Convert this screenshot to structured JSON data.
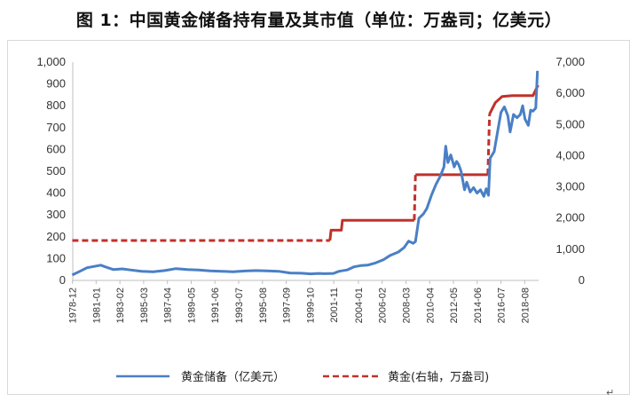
{
  "chart_data": {
    "type": "line",
    "title": "图 1：中国黄金储备持有量及其市值（单位：万盎司；亿美元）",
    "x_categories": [
      "1978-12",
      "1981-01",
      "1983-02",
      "1985-03",
      "1987-04",
      "1989-05",
      "1991-06",
      "1993-07",
      "1995-08",
      "1997-09",
      "1999-10",
      "2001-11",
      "2004-01",
      "2006-02",
      "2008-03",
      "2010-04",
      "2012-05",
      "2014-06",
      "2016-07",
      "2018-08"
    ],
    "x_start_year": 1978.95,
    "x_end_year": 2019.8,
    "y_left": {
      "min": 0,
      "max": 1000,
      "step": 100,
      "ticks": [
        "0",
        "100",
        "200",
        "300",
        "400",
        "500",
        "600",
        "700",
        "800",
        "900",
        "1,000"
      ]
    },
    "y_right": {
      "min": 0,
      "max": 7000,
      "step": 1000,
      "ticks": [
        "0",
        "1,000",
        "2,000",
        "3,000",
        "4,000",
        "5,000",
        "6,000",
        "7,000"
      ]
    },
    "series": [
      {
        "name": "黄金储备（亿美元）",
        "axis": "left",
        "style": "solid",
        "color": "#4a7fc6",
        "points": [
          [
            1978.9,
            25
          ],
          [
            1979.5,
            40
          ],
          [
            1980.2,
            58
          ],
          [
            1981.0,
            66
          ],
          [
            1981.4,
            70
          ],
          [
            1981.8,
            62
          ],
          [
            1982.5,
            50
          ],
          [
            1983.3,
            53
          ],
          [
            1984.0,
            48
          ],
          [
            1985.0,
            42
          ],
          [
            1986.0,
            40
          ],
          [
            1987.0,
            45
          ],
          [
            1988.0,
            54
          ],
          [
            1989.0,
            50
          ],
          [
            1990.0,
            48
          ],
          [
            1991.0,
            44
          ],
          [
            1992.0,
            42
          ],
          [
            1993.0,
            40
          ],
          [
            1994.0,
            43
          ],
          [
            1995.0,
            45
          ],
          [
            1996.0,
            44
          ],
          [
            1997.0,
            42
          ],
          [
            1998.0,
            34
          ],
          [
            1999.0,
            33
          ],
          [
            1999.8,
            30
          ],
          [
            2000.5,
            32
          ],
          [
            2001.0,
            31
          ],
          [
            2001.8,
            32
          ],
          [
            2002.3,
            42
          ],
          [
            2003.0,
            48
          ],
          [
            2003.6,
            62
          ],
          [
            2004.2,
            68
          ],
          [
            2004.8,
            70
          ],
          [
            2005.5,
            80
          ],
          [
            2006.2,
            95
          ],
          [
            2006.8,
            115
          ],
          [
            2007.5,
            130
          ],
          [
            2008.0,
            150
          ],
          [
            2008.4,
            180
          ],
          [
            2008.8,
            170
          ],
          [
            2009.0,
            178
          ],
          [
            2009.3,
            285
          ],
          [
            2009.7,
            305
          ],
          [
            2010.0,
            330
          ],
          [
            2010.4,
            390
          ],
          [
            2010.8,
            440
          ],
          [
            2011.2,
            480
          ],
          [
            2011.5,
            520
          ],
          [
            2011.65,
            615
          ],
          [
            2011.85,
            540
          ],
          [
            2012.1,
            575
          ],
          [
            2012.4,
            520
          ],
          [
            2012.6,
            545
          ],
          [
            2012.8,
            530
          ],
          [
            2013.0,
            500
          ],
          [
            2013.3,
            415
          ],
          [
            2013.5,
            450
          ],
          [
            2013.8,
            405
          ],
          [
            2014.1,
            425
          ],
          [
            2014.4,
            400
          ],
          [
            2014.7,
            415
          ],
          [
            2015.0,
            385
          ],
          [
            2015.2,
            420
          ],
          [
            2015.4,
            390
          ],
          [
            2015.55,
            560
          ],
          [
            2015.9,
            590
          ],
          [
            2016.2,
            680
          ],
          [
            2016.5,
            770
          ],
          [
            2016.8,
            795
          ],
          [
            2017.1,
            755
          ],
          [
            2017.3,
            680
          ],
          [
            2017.6,
            760
          ],
          [
            2017.9,
            745
          ],
          [
            2018.2,
            760
          ],
          [
            2018.4,
            800
          ],
          [
            2018.6,
            740
          ],
          [
            2018.9,
            710
          ],
          [
            2019.1,
            780
          ],
          [
            2019.3,
            775
          ],
          [
            2019.55,
            790
          ],
          [
            2019.7,
            960
          ]
        ]
      },
      {
        "name": "黄金(右轴，万盎司)",
        "axis": "right",
        "style": "dashed",
        "color": "#c0312b",
        "segments": [
          {
            "style": "dashed",
            "points": [
              [
                1978.9,
                1280
              ],
              [
                2001.5,
                1280
              ]
            ]
          },
          {
            "style": "solid",
            "points": [
              [
                2001.5,
                1280
              ],
              [
                2001.6,
                1610
              ],
              [
                2002.5,
                1610
              ],
              [
                2002.6,
                1930
              ],
              [
                2008.9,
                1930
              ]
            ]
          },
          {
            "style": "dashed",
            "points": [
              [
                2008.9,
                1930
              ],
              [
                2009.0,
                3389
              ]
            ]
          },
          {
            "style": "solid",
            "points": [
              [
                2009.0,
                3389
              ],
              [
                2015.35,
                3389
              ]
            ]
          },
          {
            "style": "dashed",
            "points": [
              [
                2015.35,
                3389
              ],
              [
                2015.5,
                5332
              ]
            ]
          },
          {
            "style": "solid",
            "points": [
              [
                2015.5,
                5332
              ],
              [
                2016.0,
                5700
              ],
              [
                2016.6,
                5900
              ],
              [
                2017.5,
                5924
              ],
              [
                2019.3,
                5924
              ],
              [
                2019.75,
                6264
              ]
            ]
          }
        ]
      }
    ],
    "grid": false,
    "legend_position": "bottom"
  },
  "legend": {
    "left_label": "黄金储备（亿美元）",
    "right_label": "黄金(右轴，万盎司)"
  },
  "footer_mark": "↵"
}
